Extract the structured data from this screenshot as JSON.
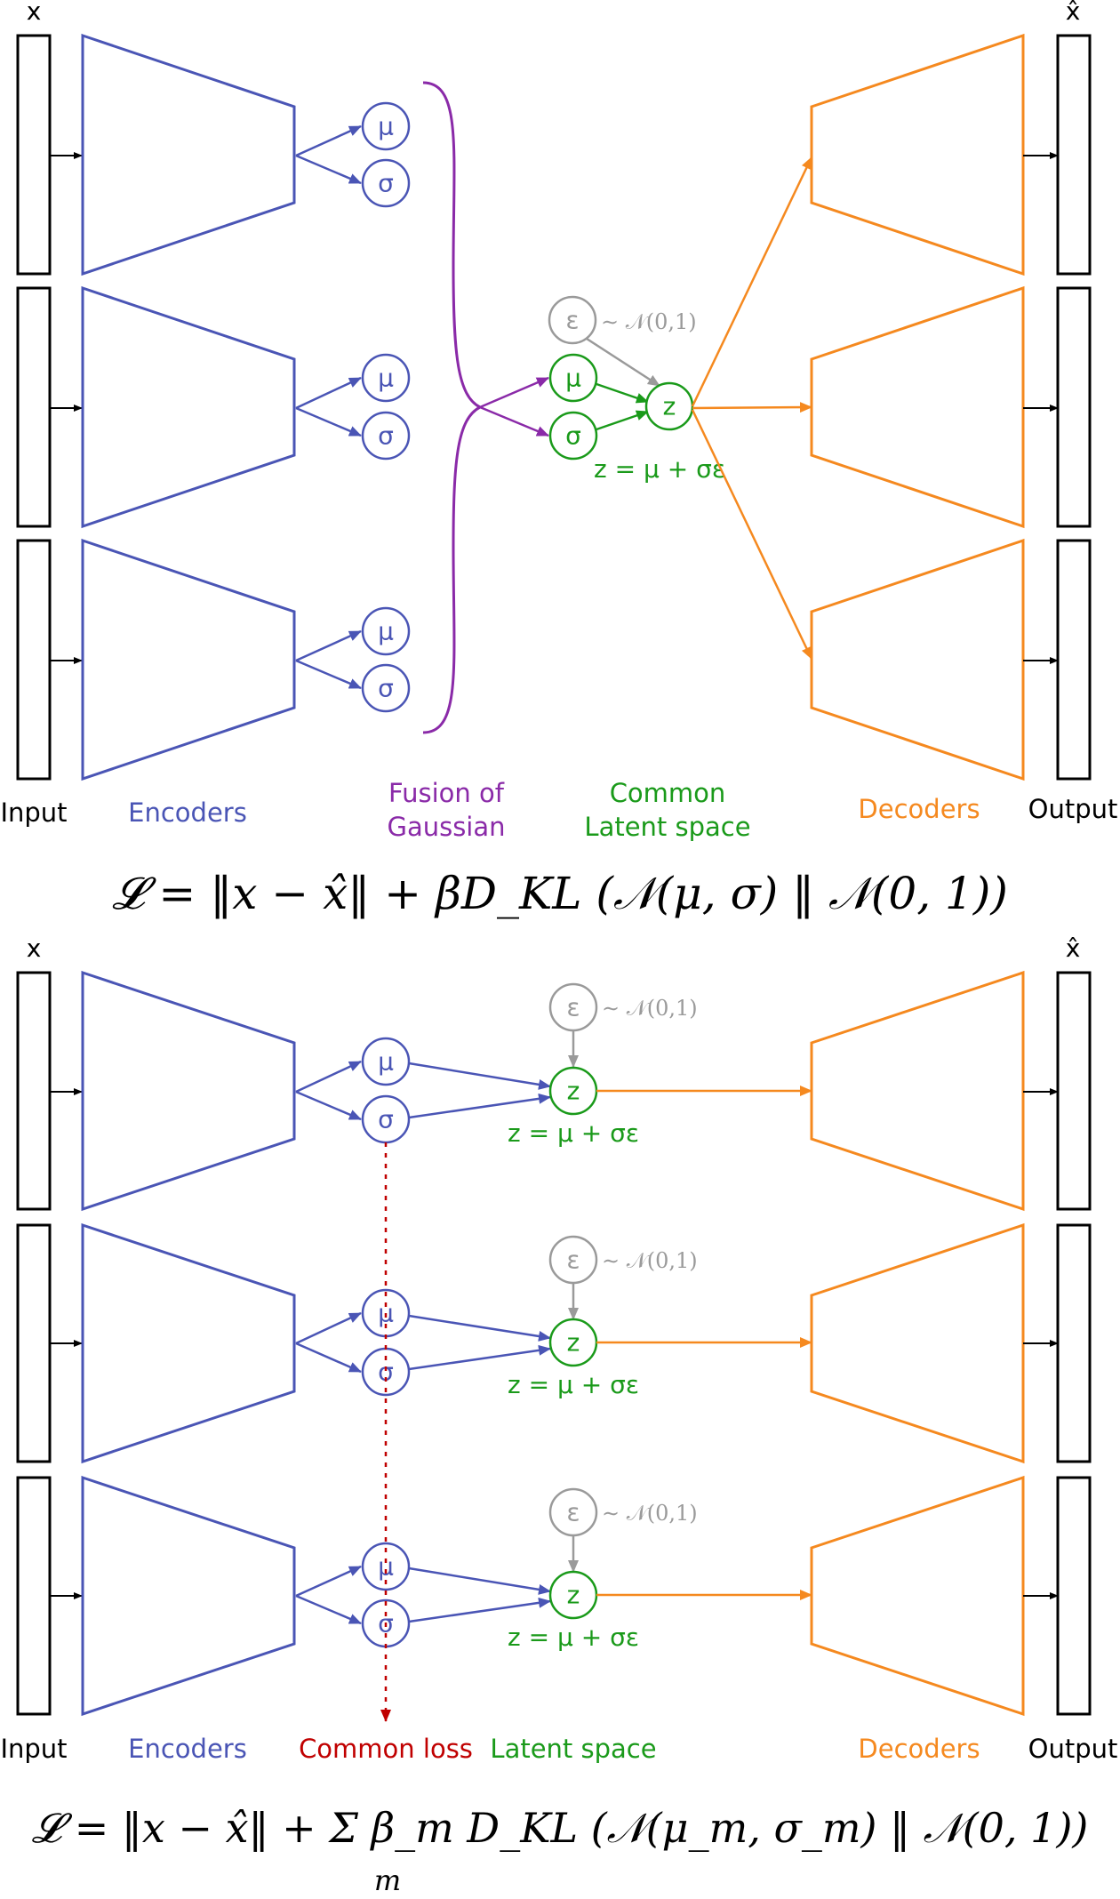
{
  "colors": {
    "encoder": "#4a55b5",
    "fusion": "#8a2aa8",
    "latent": "#1a9a1a",
    "decoder": "#f5891f",
    "epsilon": "#9a9a9a",
    "common_loss": "#c00000",
    "ink": "#000000"
  },
  "top": {
    "input_symbol": "x",
    "output_symbol": "x̂",
    "mu": "μ",
    "sigma": "σ",
    "eps": "ε",
    "z": "z",
    "prior": "∼ 𝒩(0,1)",
    "reparam": "z = μ + σε",
    "labels": {
      "input": "Input",
      "encoders": "Encoders",
      "fusion_line1": "Fusion of",
      "fusion_line2": "Gaussian",
      "latent_line1": "Common",
      "latent_line2": "Latent space",
      "decoders": "Decoders",
      "output": "Output"
    },
    "equation": "𝓛 = ‖x − x̂‖ + βD_KL (𝒩(μ, σ) ‖ 𝒩(0, 1))"
  },
  "bottom": {
    "input_symbol": "x",
    "output_symbol": "x̂",
    "mu": "μ",
    "sigma": "σ",
    "eps": "ε",
    "z": "z",
    "prior": "∼ 𝒩(0,1)",
    "reparam": "z = μ + σε",
    "labels": {
      "input": "Input",
      "encoders": "Encoders",
      "common_loss": "Common loss",
      "latent": "Latent space",
      "decoders": "Decoders",
      "output": "Output"
    },
    "equation": "𝓛 = ‖x − x̂‖ + Σ β_m D_KL (𝒩(μ_m, σ_m) ‖ 𝒩(0, 1))",
    "equation_sub": "m"
  }
}
